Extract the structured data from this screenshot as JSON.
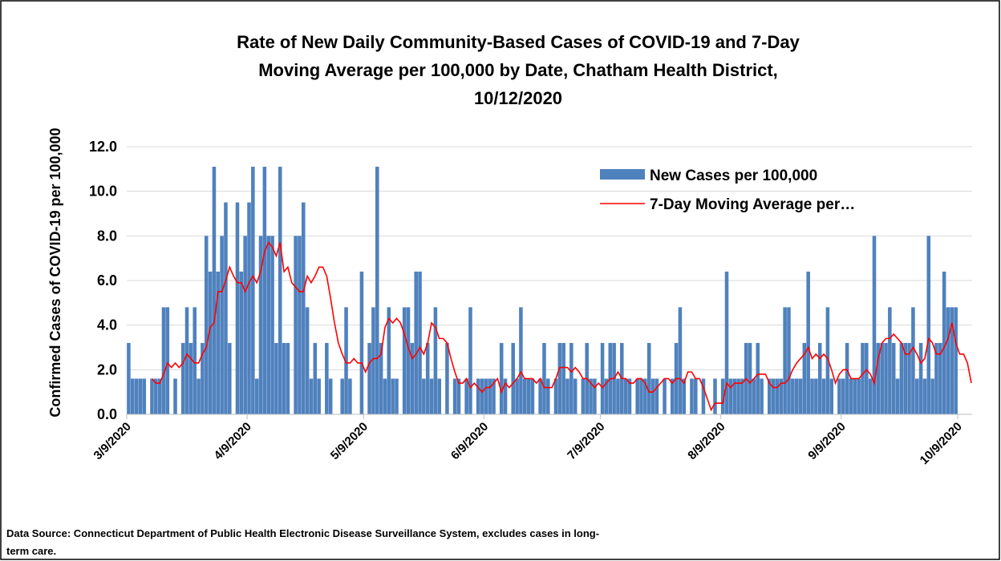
{
  "chart_data": {
    "type": "bar",
    "title": [
      "Rate of New Daily Community-Based Cases of COVID-19 and 7-Day",
      "Moving Average per 100,000  by Date, Chatham Health District,",
      "10/12/2020"
    ],
    "y_label": "Confirmed Cases of COVID-19 per 100,000",
    "note": "Data Source: Connecticut  Department of Public Health Electronic Disease Surveillance System, excludes cases in long-term care.",
    "categories": [
      "3/9/2020",
      "3/10/2020",
      "3/11/2020",
      "3/12/2020",
      "3/13/2020",
      "3/14/2020",
      "3/15/2020",
      "3/16/2020",
      "3/17/2020",
      "3/18/2020",
      "3/19/2020",
      "3/20/2020",
      "3/21/2020",
      "3/22/2020",
      "3/23/2020",
      "3/24/2020",
      "3/25/2020",
      "3/26/2020",
      "3/27/2020",
      "3/28/2020",
      "3/29/2020",
      "3/30/2020",
      "3/31/2020",
      "4/1/2020",
      "4/2/2020",
      "4/3/2020",
      "4/4/2020",
      "4/5/2020",
      "4/6/2020",
      "4/7/2020",
      "4/8/2020",
      "4/9/2020",
      "4/10/2020",
      "4/11/2020",
      "4/12/2020",
      "4/13/2020",
      "4/14/2020",
      "4/15/2020",
      "4/16/2020",
      "4/17/2020",
      "4/18/2020",
      "4/19/2020",
      "4/20/2020",
      "4/21/2020",
      "4/22/2020",
      "4/23/2020",
      "4/24/2020",
      "4/25/2020",
      "4/26/2020",
      "4/27/2020",
      "4/28/2020",
      "4/29/2020",
      "4/30/2020",
      "5/1/2020",
      "5/2/2020",
      "5/3/2020",
      "5/4/2020",
      "5/5/2020",
      "5/6/2020",
      "5/7/2020",
      "5/8/2020",
      "5/9/2020",
      "5/10/2020",
      "5/11/2020",
      "5/12/2020",
      "5/13/2020",
      "5/14/2020",
      "5/15/2020",
      "5/16/2020",
      "5/17/2020",
      "5/18/2020",
      "5/19/2020",
      "5/20/2020",
      "5/21/2020",
      "5/22/2020",
      "5/23/2020",
      "5/24/2020",
      "5/25/2020",
      "5/26/2020",
      "5/27/2020",
      "5/28/2020",
      "5/29/2020",
      "5/30/2020",
      "5/31/2020",
      "6/1/2020",
      "6/2/2020",
      "6/3/2020",
      "6/4/2020",
      "6/5/2020",
      "6/6/2020",
      "6/7/2020",
      "6/8/2020",
      "6/9/2020",
      "6/10/2020",
      "6/11/2020",
      "6/12/2020",
      "6/13/2020",
      "6/14/2020",
      "6/15/2020",
      "6/16/2020",
      "6/17/2020",
      "6/18/2020",
      "6/19/2020",
      "6/20/2020",
      "6/21/2020",
      "6/22/2020",
      "6/23/2020",
      "6/24/2020",
      "6/25/2020",
      "6/26/2020",
      "6/27/2020",
      "6/28/2020",
      "6/29/2020",
      "6/30/2020",
      "7/1/2020",
      "7/2/2020",
      "7/3/2020",
      "7/4/2020",
      "7/5/2020",
      "7/6/2020",
      "7/7/2020",
      "7/8/2020",
      "7/9/2020",
      "7/10/2020",
      "7/11/2020",
      "7/12/2020",
      "7/13/2020",
      "7/14/2020",
      "7/15/2020",
      "7/16/2020",
      "7/17/2020",
      "7/18/2020",
      "7/19/2020",
      "7/20/2020",
      "7/21/2020",
      "7/22/2020",
      "7/23/2020",
      "7/24/2020",
      "7/25/2020",
      "7/26/2020",
      "7/27/2020",
      "7/28/2020",
      "7/29/2020",
      "7/30/2020",
      "7/31/2020",
      "8/1/2020",
      "8/2/2020",
      "8/3/2020",
      "8/4/2020",
      "8/5/2020",
      "8/6/2020",
      "8/7/2020",
      "8/8/2020",
      "8/9/2020",
      "8/10/2020",
      "8/11/2020",
      "8/12/2020",
      "8/13/2020",
      "8/14/2020",
      "8/15/2020",
      "8/16/2020",
      "8/17/2020",
      "8/18/2020",
      "8/19/2020",
      "8/20/2020",
      "8/21/2020",
      "8/22/2020",
      "8/23/2020",
      "8/24/2020",
      "8/25/2020",
      "8/26/2020",
      "8/27/2020",
      "8/28/2020",
      "8/29/2020",
      "8/30/2020",
      "8/31/2020",
      "9/1/2020",
      "9/2/2020",
      "9/3/2020",
      "9/4/2020",
      "9/5/2020",
      "9/6/2020",
      "9/7/2020",
      "9/8/2020",
      "9/9/2020",
      "9/10/2020",
      "9/11/2020",
      "9/12/2020",
      "9/13/2020",
      "9/14/2020",
      "9/15/2020",
      "9/16/2020",
      "9/17/2020",
      "9/18/2020",
      "9/19/2020",
      "9/20/2020",
      "9/21/2020",
      "9/22/2020",
      "9/23/2020",
      "9/24/2020",
      "9/25/2020",
      "9/26/2020",
      "9/27/2020",
      "9/28/2020",
      "9/29/2020",
      "9/30/2020",
      "10/1/2020",
      "10/2/2020",
      "10/3/2020",
      "10/4/2020",
      "10/5/2020",
      "10/6/2020",
      "10/7/2020",
      "10/8/2020",
      "10/9/2020",
      "10/10/2020",
      "10/11/2020",
      "10/12/2020"
    ],
    "xticks": [
      "3/9/2020",
      "4/9/2020",
      "5/9/2020",
      "6/9/2020",
      "7/9/2020",
      "8/9/2020",
      "9/9/2020",
      "10/9/2020"
    ],
    "series": [
      {
        "name": "New Cases per 100,000",
        "type": "bar",
        "color": "#4f81bd",
        "values": [
          3.2,
          1.6,
          1.6,
          1.6,
          1.6,
          0,
          1.6,
          1.6,
          1.6,
          4.8,
          4.8,
          0,
          1.6,
          0,
          3.2,
          4.8,
          3.2,
          4.8,
          1.6,
          3.2,
          8.0,
          6.4,
          11.1,
          6.4,
          8.0,
          9.5,
          3.2,
          0,
          9.5,
          6.4,
          8.0,
          9.5,
          11.1,
          1.6,
          8.0,
          11.1,
          8.0,
          8.0,
          3.2,
          11.1,
          3.2,
          3.2,
          0,
          8.0,
          8.0,
          9.5,
          4.8,
          1.6,
          3.2,
          1.6,
          0,
          3.2,
          1.6,
          0,
          0,
          1.6,
          4.8,
          1.6,
          0,
          0,
          6.4,
          0,
          3.2,
          4.8,
          11.1,
          3.2,
          1.6,
          4.8,
          1.6,
          1.6,
          0,
          4.8,
          4.8,
          3.2,
          6.4,
          6.4,
          1.6,
          3.2,
          1.6,
          4.8,
          1.6,
          0,
          3.2,
          0,
          1.6,
          1.6,
          0,
          1.6,
          4.8,
          0,
          1.6,
          1.6,
          1.6,
          1.6,
          1.6,
          0,
          3.2,
          1.6,
          0,
          3.2,
          1.6,
          4.8,
          1.6,
          1.6,
          1.6,
          0,
          1.6,
          3.2,
          1.6,
          0,
          1.6,
          3.2,
          3.2,
          1.6,
          3.2,
          1.6,
          0,
          1.6,
          3.2,
          1.6,
          1.6,
          0,
          3.2,
          1.6,
          3.2,
          3.2,
          1.6,
          3.2,
          1.6,
          1.6,
          0,
          1.6,
          1.6,
          1.6,
          3.2,
          1.6,
          1.6,
          0,
          1.6,
          0,
          1.6,
          3.2,
          4.8,
          1.6,
          0,
          1.6,
          1.6,
          0,
          1.6,
          0,
          0,
          1.6,
          0,
          1.6,
          6.4,
          1.6,
          1.6,
          1.6,
          1.6,
          3.2,
          3.2,
          1.6,
          3.2,
          1.6,
          0,
          1.6,
          1.6,
          1.6,
          1.6,
          4.8,
          4.8,
          1.6,
          1.6,
          1.6,
          3.2,
          6.4,
          1.6,
          1.6,
          3.2,
          1.6,
          4.8,
          1.6,
          0,
          1.6,
          1.6,
          3.2,
          1.6,
          1.6,
          1.6,
          3.2,
          3.2,
          1.6,
          8.0,
          3.2,
          3.2,
          3.2,
          4.8,
          3.2,
          1.6,
          3.2,
          3.2,
          3.2,
          4.8,
          1.6,
          3.2,
          1.6,
          8.0,
          1.6,
          3.2,
          3.2,
          6.4,
          4.8,
          4.8,
          4.8,
          0,
          0,
          0,
          0
        ]
      },
      {
        "name": "7-Day Moving Average per…",
        "type": "line",
        "color": "#ff0000",
        "values": [
          null,
          null,
          null,
          null,
          null,
          null,
          1.6,
          1.4,
          1.4,
          1.8,
          2.3,
          2.1,
          2.3,
          2.1,
          2.3,
          2.7,
          2.5,
          2.3,
          2.3,
          2.7,
          3.0,
          3.9,
          4.1,
          5.5,
          5.5,
          6.0,
          6.6,
          6.2,
          5.9,
          5.9,
          5.5,
          5.9,
          6.2,
          5.9,
          6.4,
          7.3,
          7.7,
          7.5,
          7.1,
          7.7,
          6.4,
          6.6,
          5.9,
          5.7,
          5.5,
          5.5,
          6.2,
          5.9,
          6.2,
          6.6,
          6.6,
          6.2,
          5.2,
          4.1,
          3.2,
          2.7,
          2.3,
          2.3,
          2.5,
          2.3,
          2.3,
          1.9,
          2.3,
          2.5,
          2.5,
          2.7,
          3.9,
          4.3,
          4.1,
          4.3,
          4.1,
          3.6,
          3.0,
          2.5,
          2.7,
          3.0,
          2.7,
          3.2,
          4.1,
          3.9,
          3.4,
          3.4,
          3.2,
          2.5,
          1.9,
          1.4,
          1.4,
          1.6,
          1.2,
          1.4,
          1.2,
          1.0,
          1.2,
          1.2,
          1.4,
          1.6,
          1.0,
          1.4,
          1.2,
          1.4,
          1.6,
          1.9,
          1.6,
          1.6,
          1.6,
          1.4,
          1.6,
          1.2,
          1.2,
          1.2,
          1.6,
          2.1,
          2.1,
          2.1,
          1.9,
          2.1,
          1.9,
          1.6,
          1.6,
          1.4,
          1.2,
          1.4,
          1.2,
          1.4,
          1.6,
          1.6,
          1.9,
          1.6,
          1.6,
          1.4,
          1.4,
          1.6,
          1.6,
          1.4,
          1.0,
          1.0,
          1.2,
          1.4,
          1.6,
          1.6,
          1.4,
          1.6,
          1.6,
          1.4,
          1.9,
          1.9,
          1.6,
          1.6,
          1.2,
          0.7,
          0.2,
          0.5,
          0.5,
          0.5,
          1.4,
          1.2,
          1.4,
          1.4,
          1.4,
          1.6,
          1.4,
          1.6,
          1.8,
          1.8,
          1.8,
          1.4,
          1.2,
          1.2,
          1.4,
          1.4,
          1.6,
          2.0,
          2.3,
          2.5,
          2.7,
          3.0,
          2.5,
          2.7,
          2.5,
          2.7,
          2.5,
          2.0,
          1.4,
          1.8,
          2.0,
          2.0,
          1.6,
          1.6,
          1.6,
          1.8,
          2.0,
          1.8,
          1.4,
          2.5,
          3.2,
          3.4,
          3.4,
          3.6,
          3.4,
          3.2,
          2.7,
          2.7,
          3.0,
          2.7,
          2.3,
          2.5,
          3.4,
          3.2,
          2.7,
          2.7,
          3.0,
          3.4,
          4.1,
          3.2,
          2.7,
          2.7,
          2.3,
          1.4
        ]
      }
    ],
    "ylim": [
      0,
      12
    ],
    "yticks": [
      {
        "value": 0,
        "label": "0.0"
      },
      {
        "value": 2,
        "label": "2.0"
      },
      {
        "value": 4,
        "label": "4.0"
      },
      {
        "value": 6,
        "label": "6.0"
      },
      {
        "value": 8,
        "label": "8.0"
      },
      {
        "value": 10,
        "label": "10.0"
      },
      {
        "value": 12,
        "label": "12.0"
      }
    ],
    "grid": true,
    "legend": "upper right"
  }
}
